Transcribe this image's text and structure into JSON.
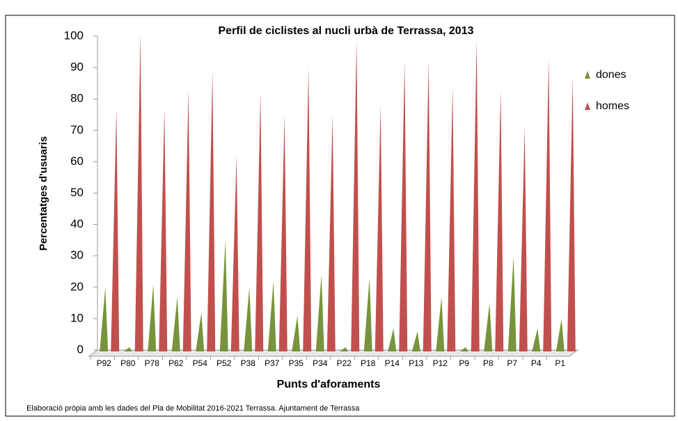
{
  "chart_data": {
    "type": "spike",
    "title": "Perfil de ciclistes al nucli urbà de Terrassa, 2013",
    "xlabel": "Punts d'aforaments",
    "ylabel": "Percentatges d'usuaris",
    "note": "Elaboració pròpia amb les  dades  del  Pla de Mobilitat 2016-2021 Terrassa. Ajuntament de Terrassa",
    "categories": [
      "P92",
      "P80",
      "P78",
      "P62",
      "P54",
      "P52",
      "P38",
      "P37",
      "P35",
      "P34",
      "P22",
      "P18",
      "P14",
      "P13",
      "P12",
      "P9",
      "P8",
      "P7",
      "P4",
      "P1"
    ],
    "series": [
      {
        "name": "dones",
        "color": "#77933c",
        "values": [
          19,
          0,
          20,
          16,
          11,
          34,
          19,
          21,
          10,
          23,
          0,
          22,
          6,
          5,
          16,
          0,
          14,
          29,
          6,
          9
        ]
      },
      {
        "name": "homes",
        "color": "#c0504d",
        "values": [
          76,
          100,
          76,
          82,
          88,
          61,
          81,
          74,
          89,
          74,
          98,
          77,
          91,
          91,
          83,
          98,
          82,
          70,
          92,
          86
        ]
      }
    ],
    "ylim": [
      0,
      100
    ],
    "yticks": [
      0,
      10,
      20,
      30,
      40,
      50,
      60,
      70,
      80,
      90,
      100
    ],
    "legend": "right"
  }
}
